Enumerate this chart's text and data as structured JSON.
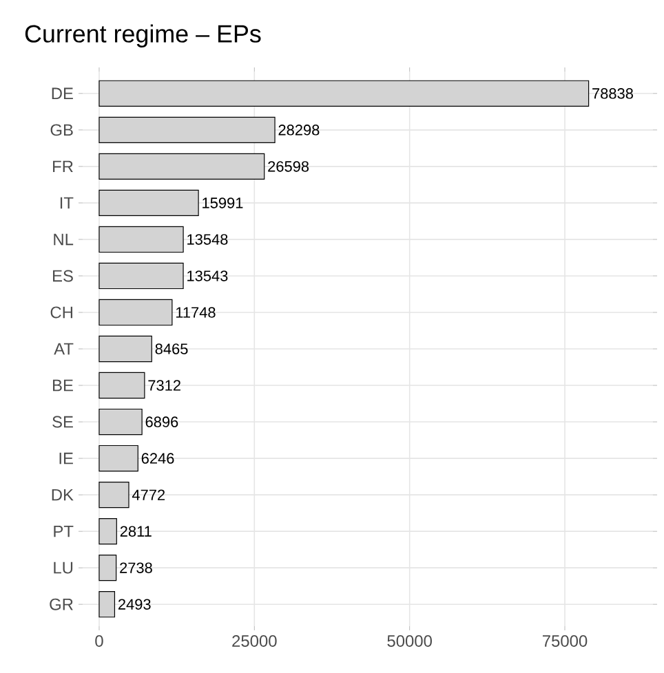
{
  "chart_data": {
    "type": "bar",
    "orientation": "horizontal",
    "title": "Current regime – EPs",
    "categories": [
      "DE",
      "GB",
      "FR",
      "IT",
      "NL",
      "ES",
      "CH",
      "AT",
      "BE",
      "SE",
      "IE",
      "DK",
      "PT",
      "LU",
      "GR"
    ],
    "values": [
      78838,
      28298,
      26598,
      15991,
      13548,
      13543,
      11748,
      8465,
      7312,
      6896,
      6246,
      4772,
      2811,
      2738,
      2493
    ],
    "color": "#d3d3d3",
    "data_labels": true,
    "grid": true,
    "xlim": [
      -2660,
      89200
    ],
    "xticks": [
      0,
      25000,
      50000,
      75000
    ]
  }
}
